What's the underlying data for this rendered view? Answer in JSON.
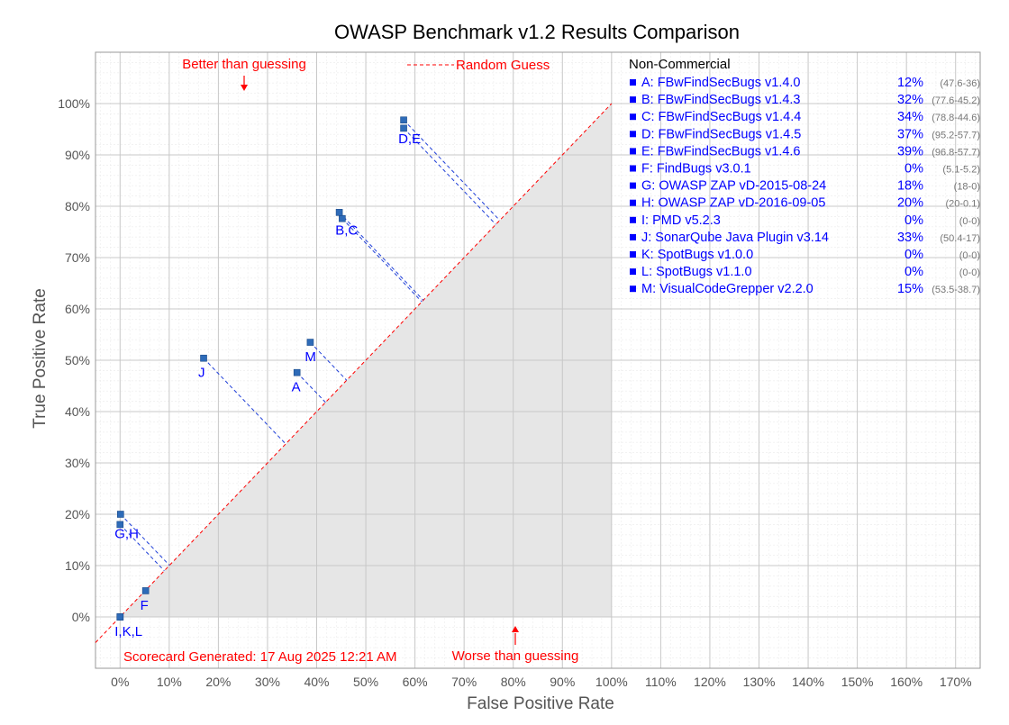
{
  "chart_data": {
    "type": "scatter",
    "title": "OWASP Benchmark v1.2 Results Comparison",
    "xlabel": "False Positive Rate",
    "ylabel": "True Positive Rate",
    "xlim": [
      -0.05,
      1.75
    ],
    "ylim": [
      -0.1,
      1.1
    ],
    "x_ticks": [
      "0%",
      "10%",
      "20%",
      "30%",
      "40%",
      "50%",
      "60%",
      "70%",
      "80%",
      "90%",
      "100%",
      "110%",
      "120%",
      "130%",
      "140%",
      "150%",
      "160%",
      "170%"
    ],
    "y_ticks": [
      "0%",
      "10%",
      "20%",
      "30%",
      "40%",
      "50%",
      "60%",
      "70%",
      "80%",
      "90%",
      "100%"
    ],
    "grid": true,
    "annotations": {
      "better": "Better than guessing",
      "worse": "Worse than guessing",
      "random_guess": "Random Guess",
      "scorecard": "Scorecard Generated: 17 Aug 2025 12:21 AM"
    },
    "legend_title": "Non-Commercial",
    "legend_placement": "top-right",
    "tools": [
      {
        "key": "A",
        "name": "A: FBwFindSecBugs v1.4.0",
        "score": "12%",
        "range": "(47.6-36)",
        "tpr": 0.476,
        "fpr": 0.36
      },
      {
        "key": "B",
        "name": "B: FBwFindSecBugs v1.4.3",
        "score": "32%",
        "range": "(77.6-45.2)",
        "tpr": 0.776,
        "fpr": 0.452
      },
      {
        "key": "C",
        "name": "C: FBwFindSecBugs v1.4.4",
        "score": "34%",
        "range": "(78.8-44.6)",
        "tpr": 0.788,
        "fpr": 0.446
      },
      {
        "key": "D",
        "name": "D: FBwFindSecBugs v1.4.5",
        "score": "37%",
        "range": "(95.2-57.7)",
        "tpr": 0.952,
        "fpr": 0.577
      },
      {
        "key": "E",
        "name": "E: FBwFindSecBugs v1.4.6",
        "score": "39%",
        "range": "(96.8-57.7)",
        "tpr": 0.968,
        "fpr": 0.577
      },
      {
        "key": "F",
        "name": "F: FindBugs v3.0.1",
        "score": "0%",
        "range": "(5.1-5.2)",
        "tpr": 0.051,
        "fpr": 0.052
      },
      {
        "key": "G",
        "name": "G: OWASP ZAP vD-2015-08-24",
        "score": "18%",
        "range": "(18-0)",
        "tpr": 0.18,
        "fpr": 0.0
      },
      {
        "key": "H",
        "name": "H: OWASP ZAP vD-2016-09-05",
        "score": "20%",
        "range": "(20-0.1)",
        "tpr": 0.2,
        "fpr": 0.001
      },
      {
        "key": "I",
        "name": "I:   PMD v5.2.3",
        "score": "0%",
        "range": "(0-0)",
        "tpr": 0.0,
        "fpr": 0.0
      },
      {
        "key": "J",
        "name": "J:  SonarQube Java Plugin v3.14",
        "score": "33%",
        "range": "(50.4-17)",
        "tpr": 0.504,
        "fpr": 0.17
      },
      {
        "key": "K",
        "name": "K: SpotBugs v1.0.0",
        "score": "0%",
        "range": "(0-0)",
        "tpr": 0.0,
        "fpr": 0.0
      },
      {
        "key": "L",
        "name": "L: SpotBugs v1.1.0",
        "score": "0%",
        "range": "(0-0)",
        "tpr": 0.0,
        "fpr": 0.0
      },
      {
        "key": "M",
        "name": "M: VisualCodeGrepper v2.2.0",
        "score": "15%",
        "range": "(53.5-38.7)",
        "tpr": 0.535,
        "fpr": 0.387
      }
    ],
    "point_labels": [
      {
        "text": "A",
        "tpr": 0.476,
        "fpr": 0.36
      },
      {
        "text": "B,C",
        "tpr": 0.782,
        "fpr": 0.449
      },
      {
        "text": "D,E",
        "tpr": 0.96,
        "fpr": 0.577
      },
      {
        "text": "F",
        "tpr": 0.051,
        "fpr": 0.052
      },
      {
        "text": "G,H",
        "tpr": 0.19,
        "fpr": 0.0
      },
      {
        "text": "I,K,L",
        "tpr": 0.0,
        "fpr": 0.0
      },
      {
        "text": "J",
        "tpr": 0.504,
        "fpr": 0.17
      },
      {
        "text": "M",
        "tpr": 0.535,
        "fpr": 0.387
      }
    ],
    "colors": {
      "point": "#2e6bb8",
      "label": "#0000ff",
      "guess_line": "#ff0000",
      "annotation": "#ff0000",
      "worse_region": "#e6e6e6"
    }
  }
}
